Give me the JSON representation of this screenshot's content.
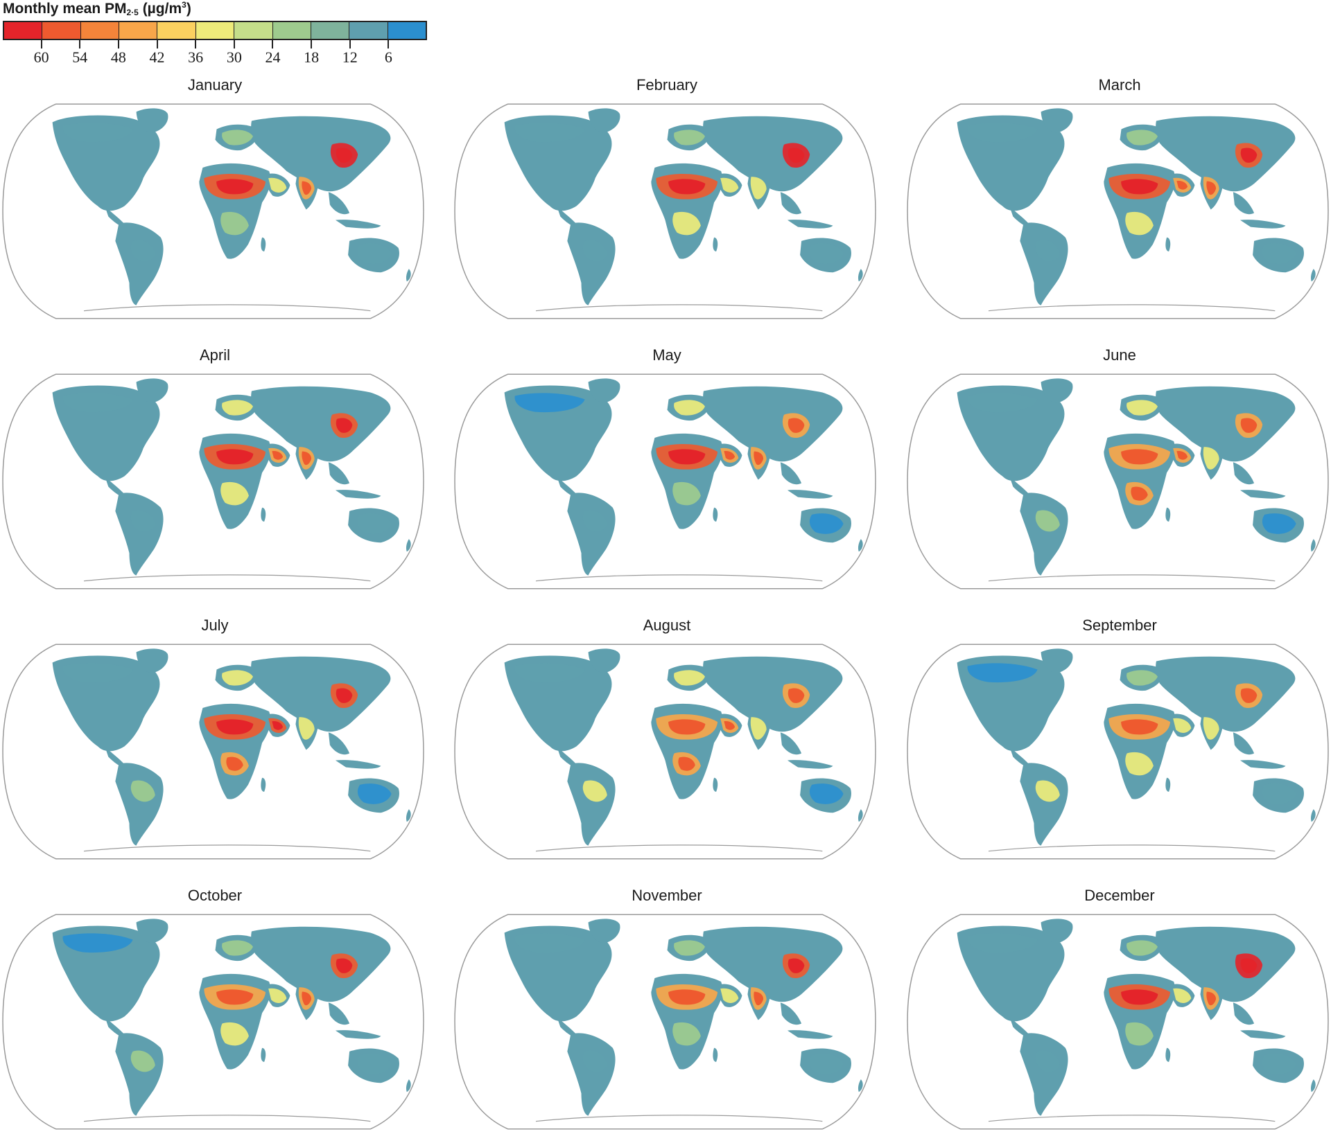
{
  "legend": {
    "title_main": "Monthly mean PM",
    "title_sub": "2·5",
    "title_unit_open": " (µg/m",
    "title_unit_sup": "3",
    "title_unit_close": ")",
    "colors": [
      "#e4242a",
      "#ee5a2f",
      "#f4843a",
      "#f8a64a",
      "#fbd160",
      "#eeeb7a",
      "#c5de8a",
      "#9ecb8e",
      "#7fb39c",
      "#5f9fae",
      "#2b8fcf"
    ],
    "ticks": [
      "60",
      "54",
      "48",
      "42",
      "36",
      "30",
      "24",
      "18",
      "12",
      "6"
    ]
  },
  "map_colors": {
    "ocean": "#ffffff",
    "outline": "#9a9a9a",
    "background_land": "#5f9fae",
    "low_alt": "#2b8fcf",
    "moderate": "#9ecb8e",
    "mid": "#eeeb7a",
    "high": "#f8a64a",
    "very_high": "#ee5a2f",
    "extreme": "#e4242a",
    "antarctica": "#ffffff"
  },
  "months": [
    {
      "name": "January",
      "sahara": 4,
      "india": 3,
      "china": 5,
      "europe": 1,
      "arabia": 2,
      "south_america": 0,
      "central_africa": 1,
      "australia": 0,
      "canada": 0
    },
    {
      "name": "February",
      "sahara": 4,
      "india": 2,
      "china": 5,
      "europe": 1,
      "arabia": 2,
      "south_america": 0,
      "central_africa": 2,
      "australia": 0,
      "canada": 0
    },
    {
      "name": "March",
      "sahara": 4,
      "india": 3,
      "china": 4,
      "europe": 1,
      "arabia": 3,
      "south_america": 0,
      "central_africa": 2,
      "australia": 0,
      "canada": 0
    },
    {
      "name": "April",
      "sahara": 4,
      "india": 3,
      "china": 4,
      "europe": 2,
      "arabia": 3,
      "south_america": 0,
      "central_africa": 2,
      "australia": 0,
      "canada": 0
    },
    {
      "name": "May",
      "sahara": 4,
      "india": 3,
      "china": 3,
      "europe": 2,
      "arabia": 3,
      "south_america": 0,
      "central_africa": 1,
      "australia": -1,
      "canada": -1
    },
    {
      "name": "June",
      "sahara": 3,
      "india": 2,
      "china": 3,
      "europe": 2,
      "arabia": 3,
      "south_america": 1,
      "central_africa": 3,
      "australia": -1,
      "canada": 0
    },
    {
      "name": "July",
      "sahara": 4,
      "india": 2,
      "china": 4,
      "europe": 2,
      "arabia": 4,
      "south_america": 1,
      "central_africa": 3,
      "australia": -1,
      "canada": 0
    },
    {
      "name": "August",
      "sahara": 3,
      "india": 2,
      "china": 3,
      "europe": 2,
      "arabia": 3,
      "south_america": 2,
      "central_africa": 3,
      "australia": -1,
      "canada": 0
    },
    {
      "name": "September",
      "sahara": 3,
      "india": 2,
      "china": 3,
      "europe": 1,
      "arabia": 2,
      "south_america": 2,
      "central_africa": 2,
      "australia": 0,
      "canada": -1
    },
    {
      "name": "October",
      "sahara": 3,
      "india": 3,
      "china": 4,
      "europe": 1,
      "arabia": 2,
      "south_america": 1,
      "central_africa": 2,
      "australia": 0,
      "canada": -1
    },
    {
      "name": "November",
      "sahara": 3,
      "india": 3,
      "china": 4,
      "europe": 1,
      "arabia": 2,
      "south_america": 0,
      "central_africa": 1,
      "australia": 0,
      "canada": 0
    },
    {
      "name": "December",
      "sahara": 4,
      "india": 3,
      "china": 5,
      "europe": 1,
      "arabia": 2,
      "south_america": 0,
      "central_africa": 1,
      "australia": 0,
      "canada": 0
    }
  ]
}
